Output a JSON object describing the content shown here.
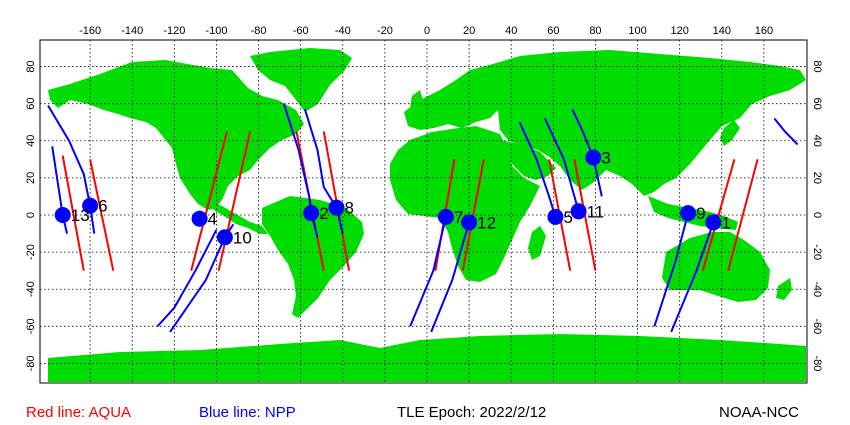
{
  "colors": {
    "land": "#00dd00",
    "ocean": "#ffffff",
    "aqua_track": "#ff0000",
    "npp_track": "#0000ff",
    "satellite_marker": "#0000ff",
    "grid": "#000000"
  },
  "axes": {
    "top_lon_ticks": [
      "-160",
      "-140",
      "-120",
      "-100",
      "-80",
      "-60",
      "-40",
      "-20",
      "0",
      "20",
      "40",
      "60",
      "80",
      "100",
      "120",
      "140",
      "160"
    ],
    "left_lat_ticks": [
      "80",
      "60",
      "40",
      "20",
      "0",
      "-20",
      "-40",
      "-60",
      "-80"
    ],
    "right_lat_ticks": [
      "80",
      "60",
      "40",
      "20",
      "0",
      "-20",
      "-40",
      "-60",
      "-80"
    ],
    "lon_range": [
      -180,
      180
    ],
    "lat_range": [
      -90,
      90
    ]
  },
  "satellites": [
    {
      "label": "1",
      "lon": 136,
      "lat": -4
    },
    {
      "label": "2",
      "lon": -55,
      "lat": 1
    },
    {
      "label": "3",
      "lon": 79,
      "lat": 31
    },
    {
      "label": "4",
      "lon": -108,
      "lat": -2
    },
    {
      "label": "5",
      "lon": 61,
      "lat": -1
    },
    {
      "label": "6",
      "lon": -160,
      "lat": 5
    },
    {
      "label": "7",
      "lon": 9,
      "lat": -1
    },
    {
      "label": "8",
      "lon": -43,
      "lat": 4
    },
    {
      "label": "9",
      "lon": 124,
      "lat": 1
    },
    {
      "label": "10",
      "lon": -96,
      "lat": -12
    },
    {
      "label": "11",
      "lon": 72,
      "lat": 2
    },
    {
      "label": "12",
      "lon": 20,
      "lat": -4
    },
    {
      "label": "13",
      "lon": -173,
      "lat": 0
    }
  ],
  "aqua_tracks": [
    [
      [
        -173,
        32
      ],
      [
        -163,
        -30
      ]
    ],
    [
      [
        -160,
        30
      ],
      [
        -149,
        -30
      ]
    ],
    [
      [
        -95,
        45
      ],
      [
        -112,
        -30
      ]
    ],
    [
      [
        -84,
        45
      ],
      [
        -99,
        -30
      ]
    ],
    [
      [
        -62,
        45
      ],
      [
        -49,
        -30
      ]
    ],
    [
      [
        -49,
        45
      ],
      [
        -37,
        -30
      ]
    ],
    [
      [
        13,
        30
      ],
      [
        4,
        -30
      ]
    ],
    [
      [
        27,
        30
      ],
      [
        17,
        -30
      ]
    ],
    [
      [
        58,
        30
      ],
      [
        68,
        -30
      ]
    ],
    [
      [
        70,
        30
      ],
      [
        80,
        -30
      ]
    ],
    [
      [
        146,
        30
      ],
      [
        131,
        -30
      ]
    ],
    [
      [
        157,
        30
      ],
      [
        143,
        -30
      ]
    ]
  ],
  "npp_tracks": [
    [
      [
        -180,
        59
      ],
      [
        -170,
        40
      ],
      [
        -163,
        22
      ],
      [
        -160,
        5
      ],
      [
        -158,
        -10
      ]
    ],
    [
      [
        -178,
        37
      ],
      [
        -173,
        0
      ],
      [
        -171,
        -10
      ]
    ],
    [
      [
        -58,
        57
      ],
      [
        -52,
        35
      ],
      [
        -49,
        15
      ],
      [
        -43,
        4
      ],
      [
        -40,
        -10
      ]
    ],
    [
      [
        -68,
        60
      ],
      [
        -61,
        35
      ],
      [
        -56,
        10
      ],
      [
        -55,
        1
      ],
      [
        -52,
        -12
      ]
    ],
    [
      [
        -100,
        -8
      ],
      [
        -110,
        -30
      ],
      [
        -120,
        -50
      ],
      [
        -128,
        -60
      ]
    ],
    [
      [
        -92,
        -5
      ],
      [
        -96,
        -12
      ],
      [
        -105,
        -35
      ],
      [
        -122,
        -63
      ]
    ],
    [
      [
        9,
        -1
      ],
      [
        3,
        -30
      ],
      [
        -8,
        -60
      ]
    ],
    [
      [
        20,
        -4
      ],
      [
        12,
        -35
      ],
      [
        2,
        -63
      ]
    ],
    [
      [
        44,
        50
      ],
      [
        52,
        30
      ],
      [
        58,
        10
      ],
      [
        61,
        -1
      ]
    ],
    [
      [
        56,
        52
      ],
      [
        65,
        30
      ],
      [
        70,
        10
      ],
      [
        72,
        2
      ]
    ],
    [
      [
        69,
        57
      ],
      [
        74,
        45
      ],
      [
        79,
        31
      ],
      [
        83,
        10
      ]
    ],
    [
      [
        124,
        1
      ],
      [
        118,
        -25
      ],
      [
        108,
        -60
      ]
    ],
    [
      [
        136,
        -4
      ],
      [
        128,
        -30
      ],
      [
        116,
        -63
      ]
    ],
    [
      [
        165,
        52
      ],
      [
        170,
        45
      ],
      [
        176,
        38
      ]
    ]
  ],
  "footer": {
    "aqua_legend": "Red line: AQUA",
    "npp_legend": "Blue line: NPP",
    "tle_epoch": "TLE Epoch: 2022/2/12",
    "source": "NOAA-NCC"
  }
}
